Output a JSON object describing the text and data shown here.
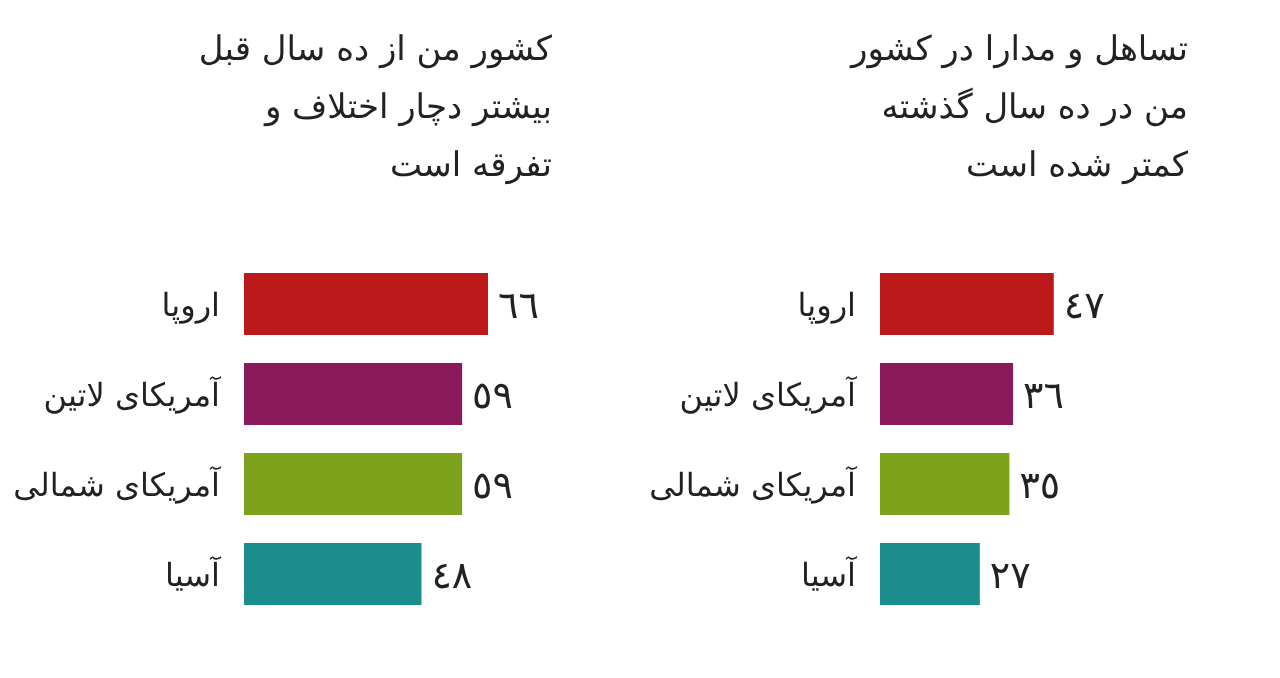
{
  "chart_data": [
    {
      "type": "bar",
      "orientation": "horizontal",
      "title": "کشور من از ده سال قبل بیشتر دچار اختلاف و تفرقه است",
      "categories": [
        "اروپا",
        "آمریکای لاتین",
        "آمریکای شمالی",
        "آسیا"
      ],
      "values": [
        66,
        59,
        59,
        48
      ],
      "colors": [
        "#bb1919",
        "#8a1a5c",
        "#7ba21a",
        "#1b8d8d"
      ],
      "value_labels": [
        "٦٦",
        "٥٩",
        "٥٩",
        "٤٨"
      ]
    },
    {
      "type": "bar",
      "orientation": "horizontal",
      "title": "تساهل و مدارا در کشور من در ده سال گذشته کمتر شده است",
      "categories": [
        "اروپا",
        "آمریکای لاتین",
        "آمریکای شمالی",
        "آسیا"
      ],
      "values": [
        47,
        36,
        35,
        27
      ],
      "colors": [
        "#bb1919",
        "#8a1a5c",
        "#7ba21a",
        "#1b8d8d"
      ],
      "value_labels": [
        "٤٧",
        "٣٦",
        "٣٥",
        "٢٧"
      ]
    }
  ]
}
